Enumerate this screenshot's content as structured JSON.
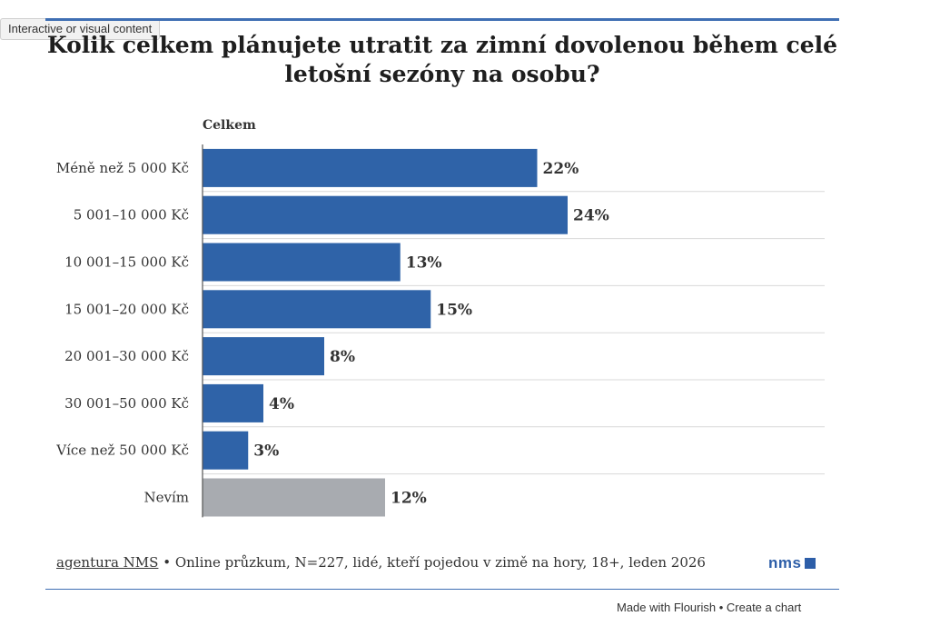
{
  "badge": "Interactive or visual content",
  "title_lines": [
    "Kolik celkem plánujete utratit za zimní dovolenou během celé",
    "letošní sezóny na osobu?"
  ],
  "chart_data": {
    "type": "bar",
    "orientation": "horizontal",
    "series_label": "Celkem",
    "categories": [
      "Méně než 5 000 Kč",
      "5 001–10 000 Kč",
      "10 001–15 000 Kč",
      "15 001–20 000 Kč",
      "20 001–30 000 Kč",
      "30 001–50 000 Kč",
      "Více než 50 000 Kč",
      "Nevím"
    ],
    "values": [
      22,
      24,
      13,
      15,
      8,
      4,
      3,
      12
    ],
    "value_labels": [
      "22%",
      "24%",
      "13%",
      "15%",
      "8%",
      "4%",
      "3%",
      "12%"
    ],
    "unit": "%",
    "xlim": [
      0,
      40
    ],
    "colors": {
      "main": "#2f63a8",
      "neutral": "#a8abb0"
    }
  },
  "footer": {
    "source": "agentura NMS",
    "separator": " • ",
    "note": "Online průzkum, N=227, lidé, kteří pojedou v zimě na hory, 18+, leden 2026"
  },
  "logo_text": "nms",
  "credit": {
    "made_with": "Made with Flourish",
    "separator": " • ",
    "create": "Create a chart"
  }
}
